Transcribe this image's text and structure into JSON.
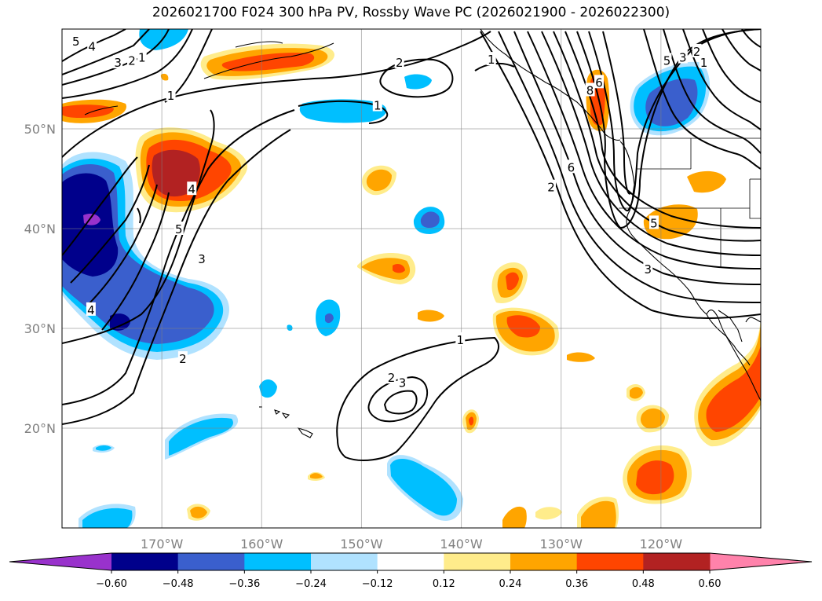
{
  "title": "2026021700 F024 300 hPa PV, Rossby Wave PC (2026021900 - 2026022300)",
  "map": {
    "lon_range": [
      -180,
      -110
    ],
    "lat_range": [
      10,
      60
    ],
    "lon_ticks": [
      -170,
      -160,
      -150,
      -140,
      -130,
      -120
    ],
    "lon_tick_labels": [
      "170°W",
      "160°W",
      "150°W",
      "140°W",
      "130°W",
      "120°W"
    ],
    "lat_ticks": [
      20,
      30,
      40,
      50
    ],
    "lat_tick_labels": [
      "20°N",
      "30°N",
      "40°N",
      "50°N"
    ],
    "gridlines": true,
    "contour_labels": [
      {
        "text": "5",
        "lon": -178.6,
        "lat": 58.8
      },
      {
        "text": "4",
        "lon": -177.0,
        "lat": 58.3
      },
      {
        "text": "3",
        "lon": -174.4,
        "lat": 56.7
      },
      {
        "text": "2",
        "lon": -173.0,
        "lat": 56.9
      },
      {
        "text": "1",
        "lon": -172.0,
        "lat": 57.2
      },
      {
        "text": "1",
        "lon": -169.1,
        "lat": 53.4
      },
      {
        "text": "2",
        "lon": -146.2,
        "lat": 56.7
      },
      {
        "text": "1",
        "lon": -148.4,
        "lat": 52.4
      },
      {
        "text": "1",
        "lon": -137.0,
        "lat": 57.0
      },
      {
        "text": "6",
        "lon": -126.2,
        "lat": 54.7
      },
      {
        "text": "8",
        "lon": -127.1,
        "lat": 53.9
      },
      {
        "text": "6",
        "lon": -129.0,
        "lat": 46.2
      },
      {
        "text": "2",
        "lon": -131.0,
        "lat": 44.2
      },
      {
        "text": "5",
        "lon": -119.4,
        "lat": 56.9
      },
      {
        "text": "3",
        "lon": -117.8,
        "lat": 57.2
      },
      {
        "text": "2",
        "lon": -116.4,
        "lat": 57.8
      },
      {
        "text": "1",
        "lon": -115.7,
        "lat": 56.7
      },
      {
        "text": "4",
        "lon": -167.0,
        "lat": 44.0
      },
      {
        "text": "5",
        "lon": -168.3,
        "lat": 40.0
      },
      {
        "text": "3",
        "lon": -166.0,
        "lat": 37.0
      },
      {
        "text": "4",
        "lon": -177.1,
        "lat": 31.9
      },
      {
        "text": "2",
        "lon": -167.9,
        "lat": 27.0
      },
      {
        "text": "1",
        "lon": -140.1,
        "lat": 28.9
      },
      {
        "text": "2",
        "lon": -147.0,
        "lat": 25.1
      },
      {
        "text": "3",
        "lon": -145.9,
        "lat": 24.6
      },
      {
        "text": "5",
        "lon": -120.7,
        "lat": 40.6
      },
      {
        "text": "3",
        "lon": -121.3,
        "lat": 36.0
      }
    ]
  },
  "colorbar": {
    "levels": [
      -0.6,
      -0.48,
      -0.36,
      -0.24,
      -0.12,
      0.12,
      0.24,
      0.36,
      0.48,
      0.6
    ],
    "tick_labels": [
      "−0.60",
      "−0.48",
      "−0.36",
      "−0.24",
      "−0.12",
      "0.12",
      "0.24",
      "0.36",
      "0.48",
      "0.60"
    ],
    "colors": [
      "#9932cc",
      "#00008b",
      "#3a5fcd",
      "#00bfff",
      "#b0e2ff",
      "#ffffff",
      "#ffec8b",
      "#ffa500",
      "#ff4500",
      "#b22222",
      "#ff82ab"
    ],
    "extend": "both"
  }
}
